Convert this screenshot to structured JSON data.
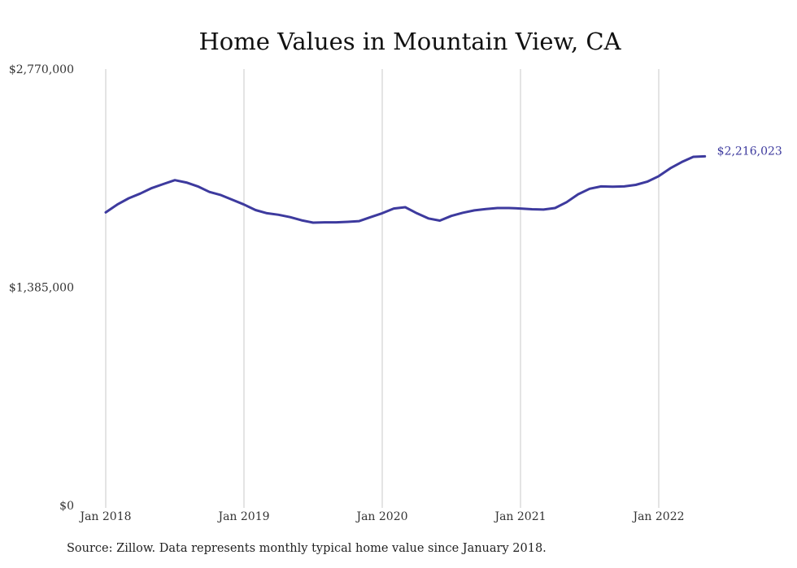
{
  "chart_data": {
    "type": "line",
    "title": "Home Values in Mountain View, CA",
    "xlabel": "",
    "ylabel": "",
    "ylim": [
      0,
      2770000
    ],
    "y_ticks": [
      {
        "value": 0,
        "label": "$0"
      },
      {
        "value": 1385000,
        "label": "$1,385,000"
      },
      {
        "value": 2770000,
        "label": "$2,770,000"
      }
    ],
    "x_range": [
      "2018-01",
      "2022-05"
    ],
    "x_ticks": [
      {
        "date": "2018-01",
        "label": "Jan 2018"
      },
      {
        "date": "2019-01",
        "label": "Jan 2019"
      },
      {
        "date": "2020-01",
        "label": "Jan 2020"
      },
      {
        "date": "2021-01",
        "label": "Jan 2021"
      },
      {
        "date": "2022-01",
        "label": "Jan 2022"
      }
    ],
    "grid": "vertical lines at x ticks",
    "line_color": "#3d3a9e",
    "grid_color": "#c8c8c8",
    "series": [
      {
        "end_label": "$2,216,023",
        "x": [
          "2018-01",
          "2018-02",
          "2018-03",
          "2018-04",
          "2018-05",
          "2018-06",
          "2018-07",
          "2018-08",
          "2018-09",
          "2018-10",
          "2018-11",
          "2018-12",
          "2019-01",
          "2019-02",
          "2019-03",
          "2019-04",
          "2019-05",
          "2019-06",
          "2019-07",
          "2019-08",
          "2019-09",
          "2019-10",
          "2019-11",
          "2019-12",
          "2020-01",
          "2020-02",
          "2020-03",
          "2020-04",
          "2020-05",
          "2020-06",
          "2020-07",
          "2020-08",
          "2020-09",
          "2020-10",
          "2020-11",
          "2020-12",
          "2021-01",
          "2021-02",
          "2021-03",
          "2021-04",
          "2021-05",
          "2021-06",
          "2021-07",
          "2021-08",
          "2021-09",
          "2021-10",
          "2021-11",
          "2021-12",
          "2022-01",
          "2022-02",
          "2022-03",
          "2022-04",
          "2022-05"
        ],
        "y": [
          1860000,
          1910000,
          1950000,
          1980000,
          2015000,
          2040000,
          2065000,
          2050000,
          2025000,
          1990000,
          1970000,
          1940000,
          1910000,
          1875000,
          1855000,
          1845000,
          1830000,
          1810000,
          1795000,
          1797000,
          1797000,
          1800000,
          1805000,
          1830000,
          1855000,
          1885000,
          1893000,
          1855000,
          1822000,
          1808000,
          1838000,
          1858000,
          1873000,
          1882000,
          1888000,
          1888000,
          1885000,
          1880000,
          1878000,
          1888000,
          1925000,
          1975000,
          2010000,
          2025000,
          2023000,
          2025000,
          2035000,
          2055000,
          2090000,
          2140000,
          2180000,
          2213000,
          2216023
        ]
      }
    ]
  },
  "footer": {
    "source": "Source: Zillow. Data represents monthly typical home value since January 2018."
  }
}
